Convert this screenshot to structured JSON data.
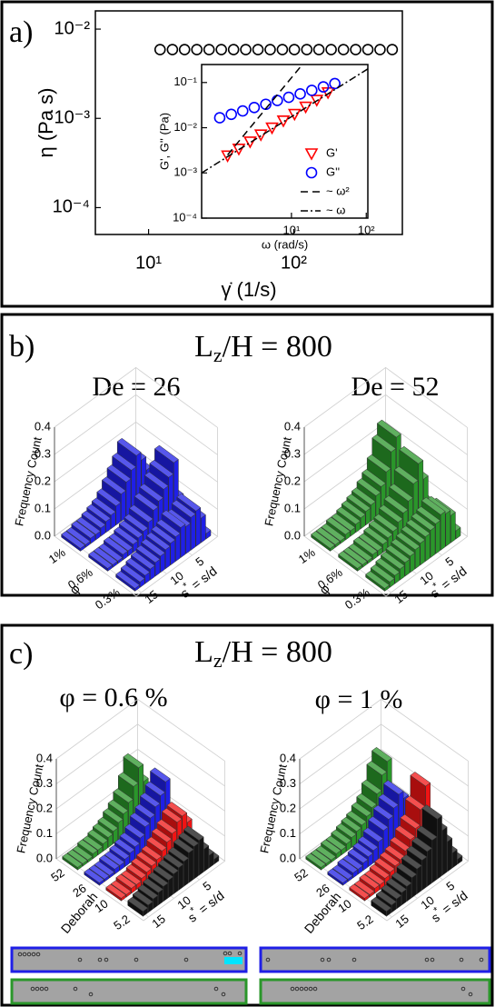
{
  "figure": {
    "panel_labels": [
      "a)",
      "b)",
      "c)"
    ],
    "panel_b_title": [
      "L",
      "z",
      "/H = 800"
    ],
    "panel_c_title": [
      "L",
      "z",
      "/H = 800"
    ]
  },
  "chart_data": [
    {
      "type": "scatter",
      "xlabel": "γ̇ (1/s)",
      "ylabel": "η (Pa s)",
      "xlog": true,
      "ylog": true,
      "xlim": [
        4.3,
        560
      ],
      "ylim": [
        5e-05,
        0.016
      ],
      "xticks": [
        {
          "value": 10,
          "label": "10¹"
        },
        {
          "value": 100,
          "label": "10²"
        }
      ],
      "yticks": [
        {
          "value": 0.0001,
          "label": "10⁻⁴"
        },
        {
          "value": 0.001,
          "label": "10⁻³"
        },
        {
          "value": 0.01,
          "label": "10⁻²"
        }
      ],
      "series": [
        {
          "color": "#000000",
          "marker": "circle",
          "x": [
            12.0,
            14.6,
            17.7,
            21.5,
            26.1,
            31.7,
            38.5,
            46.7,
            56.7,
            68.8,
            83.5,
            101,
            123,
            149,
            181,
            220,
            267,
            324,
            393,
            477
          ],
          "values": [
            0.0059,
            0.0059,
            0.0059,
            0.0059,
            0.0059,
            0.0059,
            0.0059,
            0.0059,
            0.0059,
            0.0059,
            0.0059,
            0.0059,
            0.0059,
            0.0059,
            0.0059,
            0.0059,
            0.0059,
            0.0059,
            0.0059,
            0.0059
          ]
        }
      ]
    },
    {
      "type": "scatter",
      "xlabel": "ω (rad/s)",
      "ylabel": "G', G'' (Pa)",
      "xlog": true,
      "ylog": true,
      "xlim": [
        0.63,
        105
      ],
      "ylim": [
        0.0001,
        0.25
      ],
      "xticks": [
        {
          "value": 10,
          "label": "10¹"
        },
        {
          "value": 100,
          "label": "10²"
        }
      ],
      "yticks": [
        {
          "value": 0.0001,
          "label": "10⁻⁴"
        },
        {
          "value": 0.001,
          "label": "10⁻³"
        },
        {
          "value": 0.01,
          "label": "10⁻²"
        },
        {
          "value": 0.1,
          "label": "10⁻¹"
        }
      ],
      "legend": "lower right",
      "series": [
        {
          "name": "G'",
          "color": "#ff0000",
          "marker": "triangle-down",
          "x": [
            1.4,
            1.98,
            2.8,
            3.9,
            5.5,
            7.8,
            11,
            15.5,
            21.8,
            30.8
          ],
          "values": [
            0.0024,
            0.0034,
            0.0049,
            0.007,
            0.01,
            0.0143,
            0.02,
            0.029,
            0.041,
            0.06
          ]
        },
        {
          "name": "G''",
          "color": "#0000ff",
          "marker": "circle",
          "x": [
            1.1,
            1.57,
            2.23,
            3.18,
            4.54,
            6.47,
            9.2,
            13.1,
            18.7,
            26.7,
            38
          ],
          "values": [
            0.0166,
            0.0198,
            0.0235,
            0.028,
            0.033,
            0.04,
            0.047,
            0.056,
            0.067,
            0.08,
            0.095
          ]
        },
        {
          "name": "~ ω²",
          "color": "#000000",
          "dash": "dashed",
          "x": [
            1.4,
            14
          ],
          "values": [
            0.0025,
            0.25
          ]
        },
        {
          "name": "~ ω",
          "color": "#000000",
          "dash": "dashdot",
          "x": [
            0.63,
            105
          ],
          "values": [
            0.001,
            0.2
          ]
        }
      ]
    },
    {
      "type": "bar3d",
      "title": "De = 26",
      "zlabel": "Frequency Count",
      "rowlabel": "φ",
      "xlabel_parts": [
        "s",
        "*",
        " = s/d"
      ],
      "grid": true,
      "x": [
        1,
        2,
        3,
        4,
        5,
        6,
        7,
        8,
        9,
        10,
        11,
        12,
        13,
        14,
        15
      ],
      "xlim": [
        0,
        16
      ],
      "xticks": [
        5,
        10,
        15
      ],
      "zlim": [
        0,
        0.4
      ],
      "zticks": [
        {
          "value": 0,
          "label": "0.0"
        },
        0.1,
        0.2,
        0.3,
        0.4
      ],
      "series": [
        {
          "name": "1%",
          "color": "#1f1fe6",
          "values": [
            0.05,
            0.12,
            0.17,
            0.2,
            0.16,
            0.13,
            0.1,
            0.07,
            0.05,
            0.04,
            0.03,
            0.02,
            0.02,
            0.01,
            0.01
          ]
        },
        {
          "name": "0.6%",
          "color": "#1f1fe6",
          "values": [
            0.08,
            0.22,
            0.18,
            0.15,
            0.12,
            0.1,
            0.07,
            0.05,
            0.04,
            0.03,
            0.02,
            0.02,
            0.01,
            0.01,
            0.01
          ]
        },
        {
          "name": "0.3%",
          "color": "#1f1fe6",
          "values": [
            0.02,
            0.09,
            0.13,
            0.12,
            0.1,
            0.11,
            0.09,
            0.08,
            0.07,
            0.06,
            0.05,
            0.04,
            0.03,
            0.02,
            0.01
          ]
        }
      ]
    },
    {
      "type": "bar3d",
      "title": "De = 52",
      "zlabel": "Frequency Count",
      "rowlabel": "φ",
      "xlabel_parts": [
        "s",
        "*",
        " = s/d"
      ],
      "grid": true,
      "x": [
        1,
        2,
        3,
        4,
        5,
        6,
        7,
        8,
        9,
        10,
        11,
        12,
        13,
        14,
        15
      ],
      "xlim": [
        0,
        16
      ],
      "xticks": [
        5,
        10,
        15
      ],
      "zlim": [
        0,
        0.4
      ],
      "zticks": [
        {
          "value": 0,
          "label": "0.0"
        },
        0.1,
        0.2,
        0.3,
        0.4
      ],
      "series": [
        {
          "name": "1%",
          "color": "#2a962a",
          "values": [
            0.1,
            0.24,
            0.2,
            0.14,
            0.1,
            0.08,
            0.06,
            0.05,
            0.04,
            0.03,
            0.02,
            0.02,
            0.01,
            0.01,
            0.01
          ]
        },
        {
          "name": "0.6%",
          "color": "#2a962a",
          "values": [
            0.06,
            0.16,
            0.23,
            0.17,
            0.12,
            0.09,
            0.07,
            0.05,
            0.04,
            0.03,
            0.02,
            0.02,
            0.01,
            0.01,
            0.01
          ]
        },
        {
          "name": "0.3%",
          "color": "#2a962a",
          "values": [
            0.03,
            0.1,
            0.12,
            0.13,
            0.11,
            0.1,
            0.09,
            0.08,
            0.07,
            0.06,
            0.05,
            0.04,
            0.03,
            0.02,
            0.01
          ]
        }
      ]
    },
    {
      "type": "bar3d",
      "title": "φ = 0.6 %",
      "zlabel": "Frequency Count",
      "rowlabel": "Deborah",
      "xlabel_parts": [
        "s",
        "*",
        " = s/d"
      ],
      "grid": true,
      "x": [
        1,
        2,
        3,
        4,
        5,
        6,
        7,
        8,
        9,
        10,
        11,
        12,
        13,
        14,
        15
      ],
      "xlim": [
        0,
        16
      ],
      "xticks": [
        5,
        10,
        15
      ],
      "zlim": [
        0,
        0.4
      ],
      "zticks": [
        {
          "value": 0,
          "label": "0.0"
        },
        0.1,
        0.2,
        0.3,
        0.4
      ],
      "series": [
        {
          "name": "52",
          "color": "#2a962a",
          "values": [
            0.06,
            0.16,
            0.23,
            0.17,
            0.12,
            0.09,
            0.07,
            0.05,
            0.04,
            0.03,
            0.02,
            0.02,
            0.01,
            0.01,
            0.01
          ]
        },
        {
          "name": "26",
          "color": "#1f1fe6",
          "values": [
            0.08,
            0.22,
            0.18,
            0.15,
            0.12,
            0.1,
            0.07,
            0.05,
            0.04,
            0.03,
            0.02,
            0.02,
            0.01,
            0.01,
            0.01
          ]
        },
        {
          "name": "10",
          "color": "#f01414",
          "values": [
            0.03,
            0.12,
            0.16,
            0.15,
            0.12,
            0.1,
            0.08,
            0.06,
            0.05,
            0.04,
            0.03,
            0.02,
            0.02,
            0.01,
            0.01
          ]
        },
        {
          "name": "5.2",
          "color": "#151515",
          "values": [
            0.02,
            0.05,
            0.09,
            0.14,
            0.13,
            0.12,
            0.1,
            0.09,
            0.08,
            0.07,
            0.06,
            0.05,
            0.04,
            0.03,
            0.02
          ]
        }
      ]
    },
    {
      "type": "bar3d",
      "title": "φ = 1 %",
      "zlabel": "Frequency Count",
      "rowlabel": "Deborah",
      "xlabel_parts": [
        "s",
        "*",
        " = s/d"
      ],
      "grid": true,
      "x": [
        1,
        2,
        3,
        4,
        5,
        6,
        7,
        8,
        9,
        10,
        11,
        12,
        13,
        14,
        15
      ],
      "xlim": [
        0,
        16
      ],
      "xticks": [
        5,
        10,
        15
      ],
      "zlim": [
        0,
        0.4
      ],
      "zticks": [
        {
          "value": 0,
          "label": "0.0"
        },
        0.1,
        0.2,
        0.3,
        0.4
      ],
      "series": [
        {
          "name": "52",
          "color": "#2a962a",
          "values": [
            0.1,
            0.24,
            0.2,
            0.14,
            0.1,
            0.08,
            0.06,
            0.05,
            0.04,
            0.03,
            0.02,
            0.02,
            0.01,
            0.01,
            0.01
          ]
        },
        {
          "name": "26",
          "color": "#1f1fe6",
          "values": [
            0.05,
            0.12,
            0.17,
            0.2,
            0.16,
            0.13,
            0.1,
            0.07,
            0.05,
            0.04,
            0.03,
            0.02,
            0.02,
            0.01,
            0.01
          ]
        },
        {
          "name": "10",
          "color": "#f01414",
          "values": [
            0.04,
            0.15,
            0.28,
            0.2,
            0.14,
            0.11,
            0.08,
            0.06,
            0.05,
            0.04,
            0.03,
            0.02,
            0.02,
            0.01,
            0.01
          ]
        },
        {
          "name": "5.2",
          "color": "#151515",
          "values": [
            0.02,
            0.06,
            0.12,
            0.18,
            0.24,
            0.17,
            0.14,
            0.12,
            0.1,
            0.08,
            0.06,
            0.05,
            0.04,
            0.03,
            0.02
          ]
        }
      ]
    }
  ]
}
